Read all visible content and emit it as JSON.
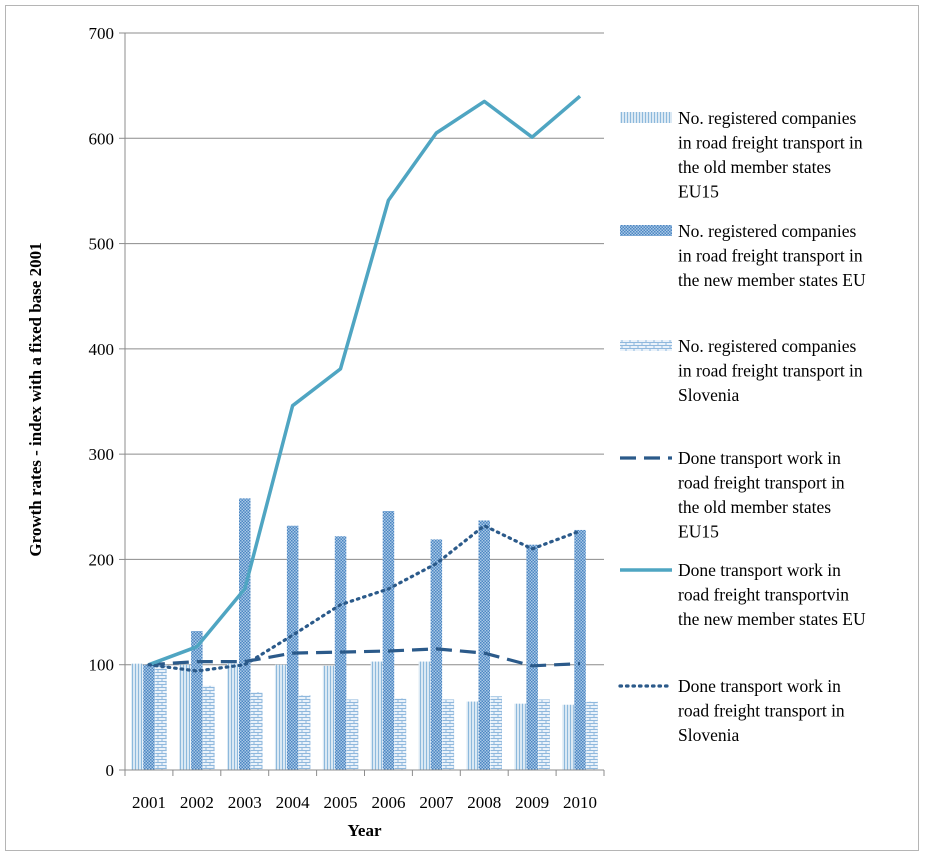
{
  "chart_data": {
    "type": "bar",
    "categories": [
      "2001",
      "2002",
      "2003",
      "2004",
      "2005",
      "2006",
      "2007",
      "2008",
      "2009",
      "2010"
    ],
    "xlabel": "Year",
    "ylabel": "Growth rates -  index with a fixed base 2001",
    "ylim": [
      0,
      700
    ],
    "yticks": [
      0,
      100,
      200,
      300,
      400,
      500,
      600,
      700
    ],
    "grid": true,
    "legend_position": "right",
    "series": [
      {
        "name": "No. registered companies in road freight transport in the old member states EU15",
        "kind": "bar",
        "pattern": "light-vertical",
        "color": "#9ec5e1",
        "values": [
          101,
          100,
          101,
          100,
          99,
          103,
          103,
          65,
          63,
          62
        ]
      },
      {
        "name": "No. registered companies in road freight transport in the new member states EU",
        "kind": "bar",
        "pattern": "dense-dots",
        "color": "#6a9fd0",
        "values": [
          100,
          132,
          258,
          232,
          222,
          246,
          219,
          237,
          214,
          228
        ]
      },
      {
        "name": "No. registered companies in road freight transport in Slovenia",
        "kind": "bar",
        "pattern": "brick",
        "color": "#a9cbe8",
        "values": [
          100,
          80,
          74,
          71,
          67,
          68,
          67,
          70,
          67,
          65
        ]
      },
      {
        "name": "Done transport work in road freight transport  in the old member states EU15",
        "kind": "line",
        "style": "dashed",
        "color": "#2b5a8a",
        "values": [
          100,
          103,
          103,
          111,
          112,
          113,
          115,
          111,
          99,
          101
        ]
      },
      {
        "name": "Done transport work in road freight transportvin the new member states EU",
        "kind": "line",
        "style": "solid",
        "color": "#4fa5c2",
        "values": [
          100,
          117,
          172,
          346,
          381,
          541,
          605,
          635,
          601,
          640
        ]
      },
      {
        "name": "Done transport work in road freight transport in Slovenia",
        "kind": "line",
        "style": "dotted",
        "color": "#2b5a8a",
        "values": [
          100,
          94,
          100,
          128,
          157,
          172,
          196,
          232,
          210,
          227
        ]
      }
    ],
    "legend_lines": [
      [
        "No. registered companies",
        "in road freight transport in",
        "the old member states",
        "EU15"
      ],
      [
        "No. registered companies",
        "in road freight transport in",
        "the new member states EU"
      ],
      [
        "No. registered companies",
        "in road freight transport in",
        "Slovenia"
      ],
      [
        "Done transport work in",
        "road freight transport  in",
        "the old member states",
        "EU15"
      ],
      [
        "Done transport work in",
        "road freight transportvin",
        "the new member states EU"
      ],
      [
        "Done transport work in",
        "road freight transport in",
        "Slovenia"
      ]
    ]
  }
}
